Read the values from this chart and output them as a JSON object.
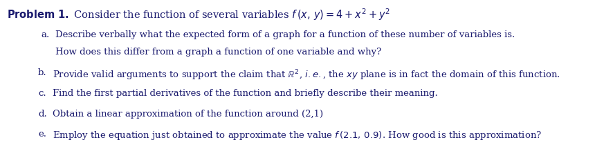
{
  "background_color": "#ffffff",
  "text_color": "#1a1a6e",
  "font_size_title": 10.5,
  "font_size_body": 9.5,
  "title_bold": "Problem 1.",
  "title_rest": " Consider the function of several variables ",
  "title_math": "f\\,(x,\\,y)=4+x^2+y^2",
  "items": [
    {
      "label": "a.",
      "indent": 0.068,
      "text_indent": 0.092,
      "lines": [
        "Describe verbally what the expected form of a graph for a function of these number of variables is.",
        "How does this differ from a graph a function of one variable and why?"
      ]
    },
    {
      "label": "b.",
      "indent": 0.063,
      "text_indent": 0.087,
      "lines": [
        "Provide valid arguments to support the claim that $\\mathbb{R}^2$, $\\mathit{i.e.}$, the $\\mathit{xy}$ plane is in fact the domain of this function."
      ]
    },
    {
      "label": "c.",
      "indent": 0.063,
      "text_indent": 0.087,
      "lines": [
        "Find the first partial derivatives of the function and briefly describe their meaning."
      ]
    },
    {
      "label": "d.",
      "indent": 0.063,
      "text_indent": 0.087,
      "lines": [
        "Obtain a linear approximation of the function around (2,1)"
      ]
    },
    {
      "label": "e.",
      "indent": 0.063,
      "text_indent": 0.087,
      "lines": [
        "Employ the equation just obtained to approximate the value $f\\,(2.1,\\,0.9)$. How good is this approximation?"
      ]
    }
  ]
}
